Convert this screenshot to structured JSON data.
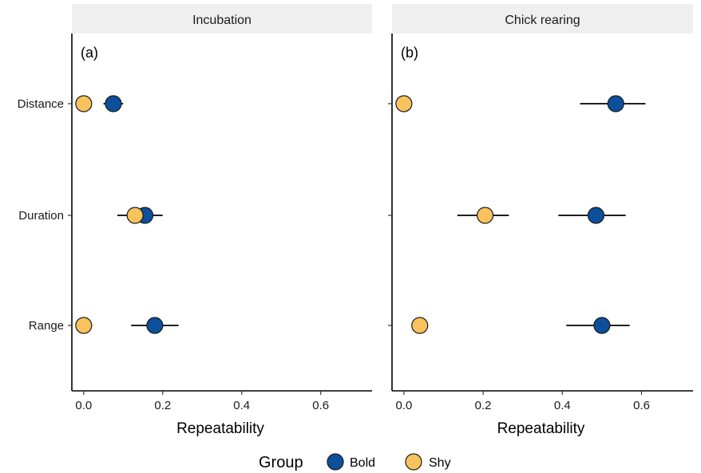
{
  "chart_data": {
    "type": "scatter",
    "categories": [
      "Distance",
      "Duration",
      "Range"
    ],
    "xlabel": "Repeatability",
    "xlim": [
      -0.03,
      0.73
    ],
    "xticks": [
      "0.0",
      "0.2",
      "0.4",
      "0.6"
    ],
    "xtick_values": [
      0,
      0.2,
      0.4,
      0.6
    ],
    "grid": false,
    "legend": {
      "title": "Group",
      "placement": "bottom"
    },
    "series_colors": {
      "Bold": "#0c4f9a",
      "Shy": "#f8c25c"
    },
    "panels": [
      {
        "strip": "Incubation",
        "tag": "(a)",
        "series": [
          {
            "name": "Bold",
            "points": [
              {
                "category": "Distance",
                "value": 0.075,
                "lo": 0.05,
                "hi": 0.1
              },
              {
                "category": "Duration",
                "value": 0.155,
                "lo": 0.085,
                "hi": 0.2
              },
              {
                "category": "Range",
                "value": 0.18,
                "lo": 0.12,
                "hi": 0.24
              }
            ]
          },
          {
            "name": "Shy",
            "points": [
              {
                "category": "Distance",
                "value": 0.0,
                "lo": null,
                "hi": null
              },
              {
                "category": "Duration",
                "value": 0.13,
                "lo": null,
                "hi": null
              },
              {
                "category": "Range",
                "value": 0.0,
                "lo": null,
                "hi": null
              }
            ]
          }
        ]
      },
      {
        "strip": "Chick rearing",
        "tag": "(b)",
        "series": [
          {
            "name": "Bold",
            "points": [
              {
                "category": "Distance",
                "value": 0.535,
                "lo": 0.445,
                "hi": 0.61
              },
              {
                "category": "Duration",
                "value": 0.485,
                "lo": 0.39,
                "hi": 0.56
              },
              {
                "category": "Range",
                "value": 0.5,
                "lo": 0.41,
                "hi": 0.57
              }
            ]
          },
          {
            "name": "Shy",
            "points": [
              {
                "category": "Distance",
                "value": 0.0,
                "lo": null,
                "hi": null
              },
              {
                "category": "Duration",
                "value": 0.205,
                "lo": 0.135,
                "hi": 0.265
              },
              {
                "category": "Range",
                "value": 0.04,
                "lo": null,
                "hi": null
              }
            ]
          }
        ]
      }
    ]
  }
}
